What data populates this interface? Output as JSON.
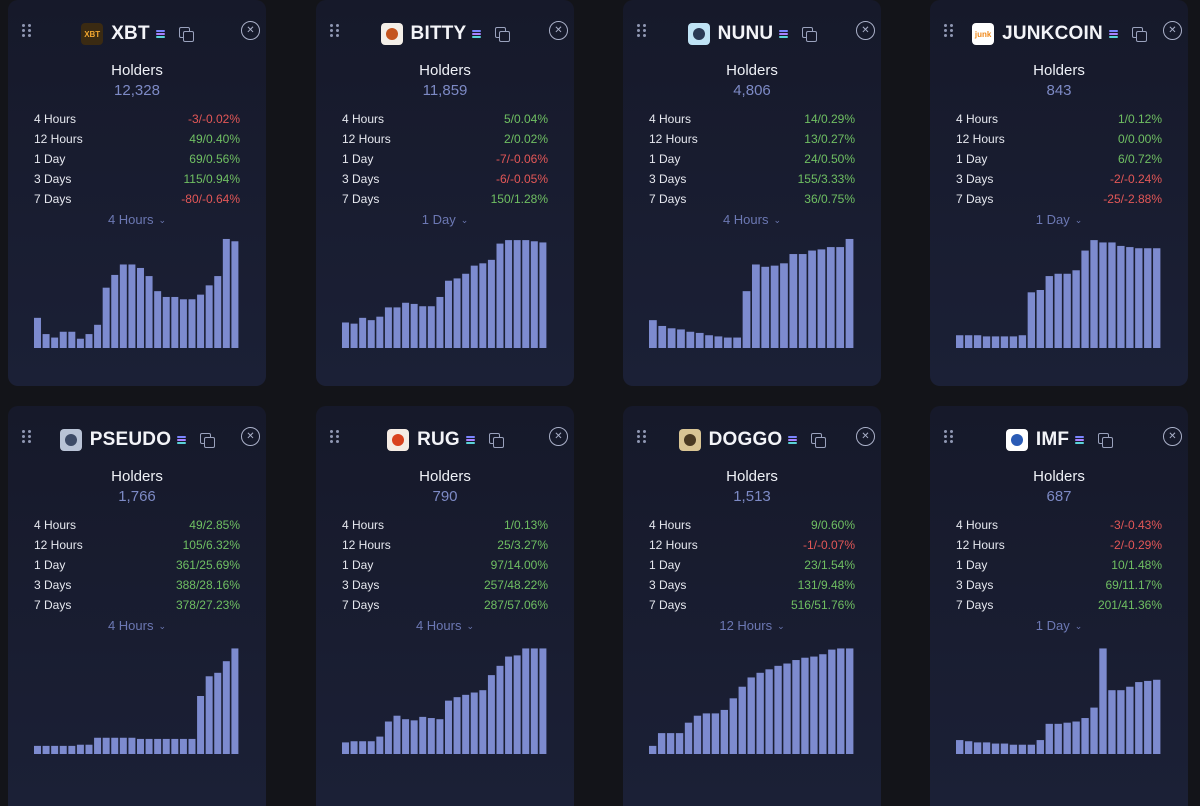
{
  "cards": [
    {
      "name": "XBT",
      "logo_icon": "xbt-logo-icon",
      "logo_text": "XBT",
      "logo_bg": "#3a2a12",
      "logo_fg": "#f0a630",
      "holders_label": "Holders",
      "holders": "12,328",
      "stats": [
        {
          "label": "4 Hours",
          "value": "-3/-0.02%",
          "dir": "neg"
        },
        {
          "label": "12 Hours",
          "value": "49/0.40%",
          "dir": "pos"
        },
        {
          "label": "1 Day",
          "value": "69/0.56%",
          "dir": "pos"
        },
        {
          "label": "3 Days",
          "value": "115/0.94%",
          "dir": "pos"
        },
        {
          "label": "7 Days",
          "value": "-80/-0.64%",
          "dir": "neg"
        }
      ],
      "period": "4 Hours",
      "chart_data": {
        "type": "bar",
        "values": [
          26,
          12,
          9,
          14,
          14,
          8,
          12,
          20,
          52,
          63,
          72,
          72,
          69,
          62,
          49,
          44,
          44,
          42,
          42,
          46,
          54,
          62,
          94,
          92
        ]
      }
    },
    {
      "name": "BITTY",
      "logo_icon": "bitty-logo-icon",
      "logo_text": "",
      "logo_bg": "#f4efe8",
      "logo_fg": "#c4541e",
      "holders_label": "Holders",
      "holders": "11,859",
      "stats": [
        {
          "label": "4 Hours",
          "value": "5/0.04%",
          "dir": "pos"
        },
        {
          "label": "12 Hours",
          "value": "2/0.02%",
          "dir": "pos"
        },
        {
          "label": "1 Day",
          "value": "-7/-0.06%",
          "dir": "neg"
        },
        {
          "label": "3 Days",
          "value": "-6/-0.05%",
          "dir": "neg"
        },
        {
          "label": "7 Days",
          "value": "150/1.28%",
          "dir": "pos"
        }
      ],
      "period": "1 Day",
      "chart_data": {
        "type": "bar",
        "values": [
          22,
          21,
          26,
          24,
          27,
          35,
          35,
          39,
          38,
          36,
          36,
          44,
          58,
          60,
          64,
          71,
          73,
          76,
          90,
          93,
          93,
          93,
          92,
          91
        ]
      }
    },
    {
      "name": "NUNU",
      "logo_icon": "nunu-logo-icon",
      "logo_text": "",
      "logo_bg": "#bfe3f5",
      "logo_fg": "#2a3a55",
      "holders_label": "Holders",
      "holders": "4,806",
      "stats": [
        {
          "label": "4 Hours",
          "value": "14/0.29%",
          "dir": "pos"
        },
        {
          "label": "12 Hours",
          "value": "13/0.27%",
          "dir": "pos"
        },
        {
          "label": "1 Day",
          "value": "24/0.50%",
          "dir": "pos"
        },
        {
          "label": "3 Days",
          "value": "155/3.33%",
          "dir": "pos"
        },
        {
          "label": "7 Days",
          "value": "36/0.75%",
          "dir": "pos"
        }
      ],
      "period": "4 Hours",
      "chart_data": {
        "type": "bar",
        "values": [
          24,
          19,
          17,
          16,
          14,
          13,
          11,
          10,
          9,
          9,
          49,
          72,
          70,
          71,
          73,
          81,
          81,
          84,
          85,
          87,
          87,
          94
        ]
      }
    },
    {
      "name": "JUNKCOIN",
      "logo_icon": "junkcoin-logo-icon",
      "logo_text": "junk",
      "logo_bg": "#ffffff",
      "logo_fg": "#f08a1c",
      "holders_label": "Holders",
      "holders": "843",
      "stats": [
        {
          "label": "4 Hours",
          "value": "1/0.12%",
          "dir": "pos"
        },
        {
          "label": "12 Hours",
          "value": "0/0.00%",
          "dir": "pos"
        },
        {
          "label": "1 Day",
          "value": "6/0.72%",
          "dir": "pos"
        },
        {
          "label": "3 Days",
          "value": "-2/-0.24%",
          "dir": "neg"
        },
        {
          "label": "7 Days",
          "value": "-25/-2.88%",
          "dir": "neg"
        }
      ],
      "period": "1 Day",
      "chart_data": {
        "type": "bar",
        "values": [
          11,
          11,
          11,
          10,
          10,
          10,
          10,
          11,
          48,
          50,
          62,
          64,
          64,
          67,
          84,
          93,
          91,
          91,
          88,
          87,
          86,
          86,
          86
        ]
      }
    },
    {
      "name": "PSEUDO",
      "logo_icon": "pseudo-logo-icon",
      "logo_text": "",
      "logo_bg": "#b9c3d6",
      "logo_fg": "#3d4a66",
      "holders_label": "Holders",
      "holders": "1,766",
      "stats": [
        {
          "label": "4 Hours",
          "value": "49/2.85%",
          "dir": "pos"
        },
        {
          "label": "12 Hours",
          "value": "105/6.32%",
          "dir": "pos"
        },
        {
          "label": "1 Day",
          "value": "361/25.69%",
          "dir": "pos"
        },
        {
          "label": "3 Days",
          "value": "388/28.16%",
          "dir": "pos"
        },
        {
          "label": "7 Days",
          "value": "378/27.23%",
          "dir": "pos"
        }
      ],
      "period": "4 Hours",
      "chart_data": {
        "type": "bar",
        "values": [
          7,
          7,
          7,
          7,
          7,
          8,
          8,
          14,
          14,
          14,
          14,
          14,
          13,
          13,
          13,
          13,
          13,
          13,
          13,
          50,
          67,
          70,
          80,
          91
        ]
      }
    },
    {
      "name": "RUG",
      "logo_icon": "rug-logo-icon",
      "logo_text": "",
      "logo_bg": "#f5ece4",
      "logo_fg": "#d9421e",
      "holders_label": "Holders",
      "holders": "790",
      "stats": [
        {
          "label": "4 Hours",
          "value": "1/0.13%",
          "dir": "pos"
        },
        {
          "label": "12 Hours",
          "value": "25/3.27%",
          "dir": "pos"
        },
        {
          "label": "1 Day",
          "value": "97/14.00%",
          "dir": "pos"
        },
        {
          "label": "3 Days",
          "value": "257/48.22%",
          "dir": "pos"
        },
        {
          "label": "7 Days",
          "value": "287/57.06%",
          "dir": "pos"
        }
      ],
      "period": "4 Hours",
      "chart_data": {
        "type": "bar",
        "values": [
          10,
          11,
          11,
          11,
          15,
          28,
          33,
          30,
          29,
          32,
          31,
          30,
          46,
          49,
          51,
          53,
          55,
          68,
          76,
          84,
          85,
          91,
          91,
          91
        ]
      }
    },
    {
      "name": "DOGGO",
      "logo_icon": "doggo-logo-icon",
      "logo_text": "",
      "logo_bg": "#d9c594",
      "logo_fg": "#4a3a22",
      "holders_label": "Holders",
      "holders": "1,513",
      "stats": [
        {
          "label": "4 Hours",
          "value": "9/0.60%",
          "dir": "pos"
        },
        {
          "label": "12 Hours",
          "value": "-1/-0.07%",
          "dir": "neg"
        },
        {
          "label": "1 Day",
          "value": "23/1.54%",
          "dir": "pos"
        },
        {
          "label": "3 Days",
          "value": "131/9.48%",
          "dir": "pos"
        },
        {
          "label": "7 Days",
          "value": "516/51.76%",
          "dir": "pos"
        }
      ],
      "period": "12 Hours",
      "chart_data": {
        "type": "bar",
        "values": [
          7,
          18,
          18,
          18,
          27,
          33,
          35,
          35,
          38,
          48,
          58,
          66,
          70,
          73,
          76,
          78,
          81,
          83,
          84,
          86,
          90,
          91,
          91
        ]
      }
    },
    {
      "name": "IMF",
      "logo_icon": "imf-logo-icon",
      "logo_text": "",
      "logo_bg": "#ffffff",
      "logo_fg": "#2a5bb5",
      "holders_label": "Holders",
      "holders": "687",
      "stats": [
        {
          "label": "4 Hours",
          "value": "-3/-0.43%",
          "dir": "neg"
        },
        {
          "label": "12 Hours",
          "value": "-2/-0.29%",
          "dir": "neg"
        },
        {
          "label": "1 Day",
          "value": "10/1.48%",
          "dir": "pos"
        },
        {
          "label": "3 Days",
          "value": "69/11.17%",
          "dir": "pos"
        },
        {
          "label": "7 Days",
          "value": "201/41.36%",
          "dir": "pos"
        }
      ],
      "period": "1 Day",
      "chart_data": {
        "type": "bar",
        "values": [
          12,
          11,
          10,
          10,
          9,
          9,
          8,
          8,
          8,
          12,
          26,
          26,
          27,
          28,
          31,
          40,
          91,
          55,
          55,
          58,
          62,
          63,
          64
        ]
      }
    }
  ]
}
